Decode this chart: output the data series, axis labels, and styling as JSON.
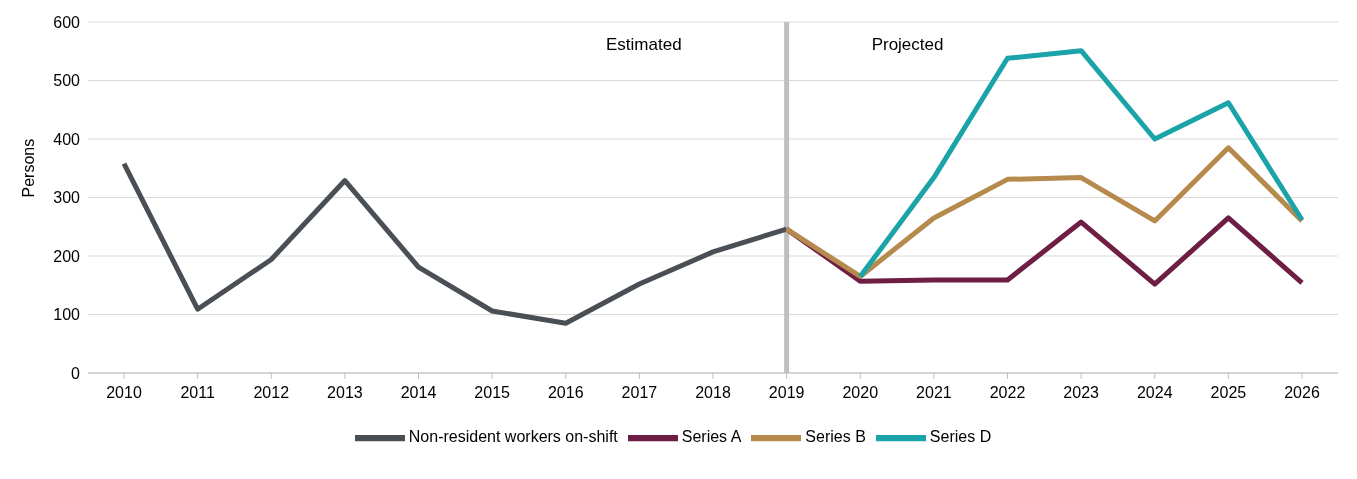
{
  "chart_data": {
    "type": "line",
    "ylabel": "Persons",
    "categories": [
      "2010",
      "2011",
      "2012",
      "2013",
      "2014",
      "2015",
      "2016",
      "2017",
      "2018",
      "2019",
      "2020",
      "2021",
      "2022",
      "2023",
      "2024",
      "2025",
      "2026"
    ],
    "series": [
      {
        "name": "Non-resident workers on-shift",
        "color": "#4a4f55",
        "values": [
          358,
          109,
          194,
          329,
          181,
          106,
          85,
          152,
          207,
          246,
          null,
          null,
          null,
          null,
          null,
          null,
          null
        ]
      },
      {
        "name": "Series A",
        "color": "#6e1e44",
        "values": [
          null,
          null,
          null,
          null,
          null,
          null,
          null,
          null,
          null,
          246,
          157,
          159,
          159,
          258,
          152,
          265,
          154
        ]
      },
      {
        "name": "Series B",
        "color": "#b58a4c",
        "values": [
          null,
          null,
          null,
          null,
          null,
          null,
          null,
          null,
          null,
          246,
          165,
          265,
          331,
          334,
          260,
          385,
          260
        ]
      },
      {
        "name": "Series D",
        "color": "#1aa3a8",
        "values": [
          null,
          null,
          null,
          null,
          null,
          null,
          null,
          null,
          null,
          null,
          165,
          334,
          538,
          551,
          400,
          462,
          262
        ]
      }
    ],
    "ylim": [
      0,
      600
    ],
    "yticks": [
      0,
      100,
      200,
      300,
      400,
      500,
      600
    ],
    "grid": "y",
    "legend": "bottom",
    "marker": "none",
    "line_style": "solid",
    "ref_lines": [
      {
        "axis": "x",
        "value": "2019",
        "color": "#bfbfbf"
      }
    ],
    "annotations": [
      "Estimated",
      "Projected"
    ]
  }
}
